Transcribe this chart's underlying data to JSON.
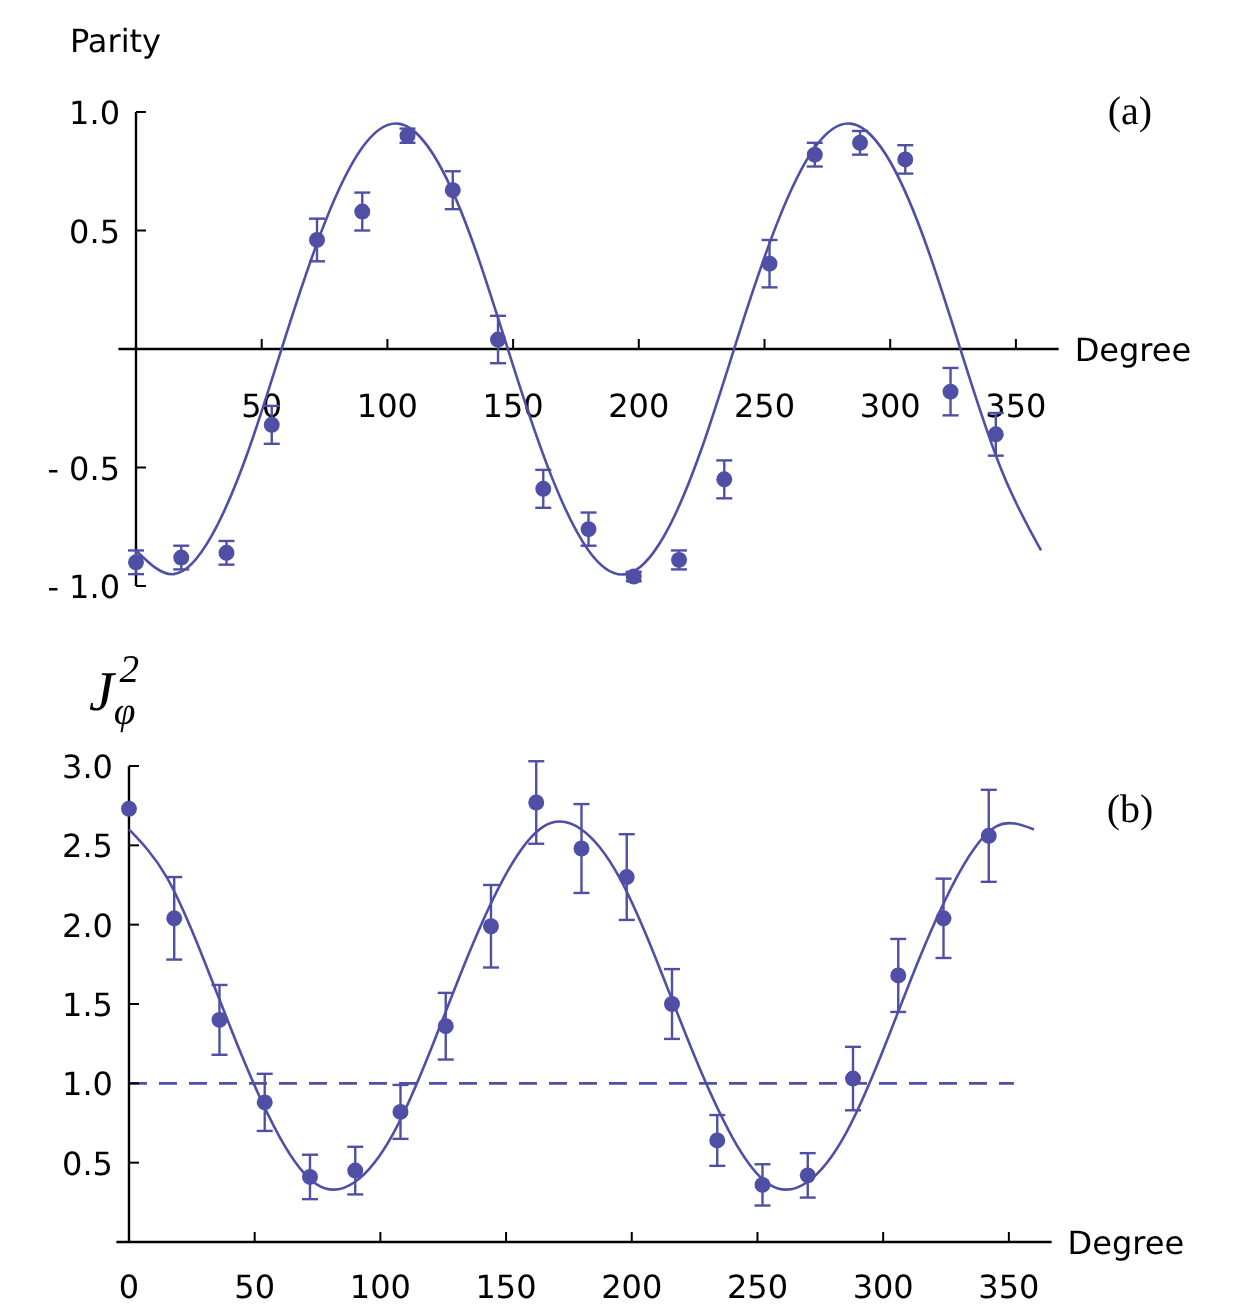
{
  "chart_data": [
    {
      "type": "scatter",
      "xlabel": "Degree",
      "ylabel": "Parity",
      "annotations": [
        "(a)"
      ],
      "xlim": [
        -7,
        367
      ],
      "ylim": [
        -1.0,
        1.0
      ],
      "xticks": [
        50,
        100,
        150,
        200,
        250,
        300,
        350
      ],
      "yticks": [
        {
          "value": 1.0,
          "label": "1.0"
        },
        0.5,
        {
          "value": -0.5,
          "label": "- 0.5"
        },
        {
          "value": -1.0,
          "label": "- 1.0"
        }
      ],
      "marker": "circle",
      "grid": false,
      "series": [
        {
          "color": "#4f4fa6",
          "x": [
            0,
            18,
            36,
            54,
            72,
            90,
            108,
            126,
            144,
            162,
            180,
            198,
            216,
            234,
            252,
            270,
            288,
            306,
            324,
            342
          ],
          "values": [
            -0.9,
            -0.88,
            -0.86,
            -0.32,
            0.46,
            0.58,
            0.9,
            0.67,
            0.04,
            -0.59,
            -0.76,
            -0.96,
            -0.89,
            -0.55,
            0.36,
            0.82,
            0.87,
            0.8,
            -0.18,
            -0.36
          ],
          "errors": [
            0.05,
            0.05,
            0.05,
            0.08,
            0.09,
            0.08,
            0.03,
            0.08,
            0.1,
            0.08,
            0.07,
            0.02,
            0.04,
            0.08,
            0.1,
            0.05,
            0.05,
            0.06,
            0.1,
            0.09
          ]
        },
        {
          "type": "line",
          "color": "#4f4fa6",
          "marker": "none",
          "line_style": "solid",
          "x": [
            0,
            15,
            30,
            45,
            60,
            75,
            90,
            105,
            120,
            135,
            150,
            165,
            180,
            195,
            210,
            225,
            240,
            255,
            270,
            285,
            300,
            315,
            330,
            345,
            360
          ],
          "values": [
            -0.85,
            -0.95,
            -0.79,
            -0.42,
            0.07,
            0.53,
            0.85,
            0.95,
            0.79,
            0.42,
            -0.07,
            -0.53,
            -0.85,
            -0.95,
            -0.79,
            -0.42,
            0.07,
            0.53,
            0.85,
            0.95,
            0.79,
            0.42,
            -0.07,
            -0.53,
            -0.85
          ]
        }
      ]
    },
    {
      "type": "scatter",
      "xlabel": "Degree",
      "ylabel": "J$_{φ}$$^{2}$",
      "annotations": [
        "(b)"
      ],
      "xlim": [
        -5,
        367
      ],
      "ylim": [
        0,
        3.0
      ],
      "xticks": [
        0,
        50,
        100,
        150,
        200,
        250,
        300,
        350
      ],
      "yticks": [
        {
          "value": 0.5,
          "label": "0.5"
        },
        {
          "value": 1.0,
          "label": "1.0"
        },
        {
          "value": 1.5,
          "label": "1.5"
        },
        {
          "value": 2.0,
          "label": "2.0"
        },
        {
          "value": 2.5,
          "label": "2.5"
        },
        {
          "value": 3.0,
          "label": "3.0"
        }
      ],
      "marker": "circle",
      "grid": false,
      "ref_lines": [
        {
          "axis": "y",
          "value": 1.0,
          "color": "#4f4fa6",
          "line_style": "dashed"
        }
      ],
      "series": [
        {
          "color": "#4f4fa6",
          "x": [
            0,
            18,
            36,
            54,
            72,
            90,
            108,
            126,
            144,
            162,
            180,
            198,
            216,
            234,
            252,
            270,
            288,
            306,
            324,
            342
          ],
          "values": [
            2.73,
            2.04,
            1.4,
            0.88,
            0.41,
            0.45,
            0.82,
            1.36,
            1.99,
            2.77,
            2.48,
            2.3,
            1.5,
            0.64,
            0.36,
            0.42,
            1.03,
            1.68,
            2.04,
            2.56
          ],
          "errors": [
            null,
            0.26,
            0.22,
            0.18,
            0.14,
            0.15,
            0.17,
            0.21,
            0.26,
            0.26,
            0.28,
            0.27,
            0.22,
            0.16,
            0.13,
            0.14,
            0.2,
            0.23,
            0.25,
            0.29
          ]
        },
        {
          "type": "line",
          "color": "#4f4fa6",
          "marker": "none",
          "line_style": "solid",
          "x": [
            0,
            15,
            30,
            45,
            60,
            75,
            90,
            105,
            120,
            135,
            150,
            165,
            180,
            195,
            210,
            225,
            240,
            255,
            270,
            285,
            300,
            315,
            330,
            345,
            360
          ],
          "values": [
            2.6,
            2.3,
            1.77,
            1.17,
            0.66,
            0.36,
            0.38,
            0.68,
            1.21,
            1.81,
            2.32,
            2.62,
            2.6,
            2.3,
            1.77,
            1.17,
            0.66,
            0.36,
            0.38,
            0.68,
            1.21,
            1.81,
            2.32,
            2.62,
            2.6
          ]
        }
      ]
    }
  ]
}
